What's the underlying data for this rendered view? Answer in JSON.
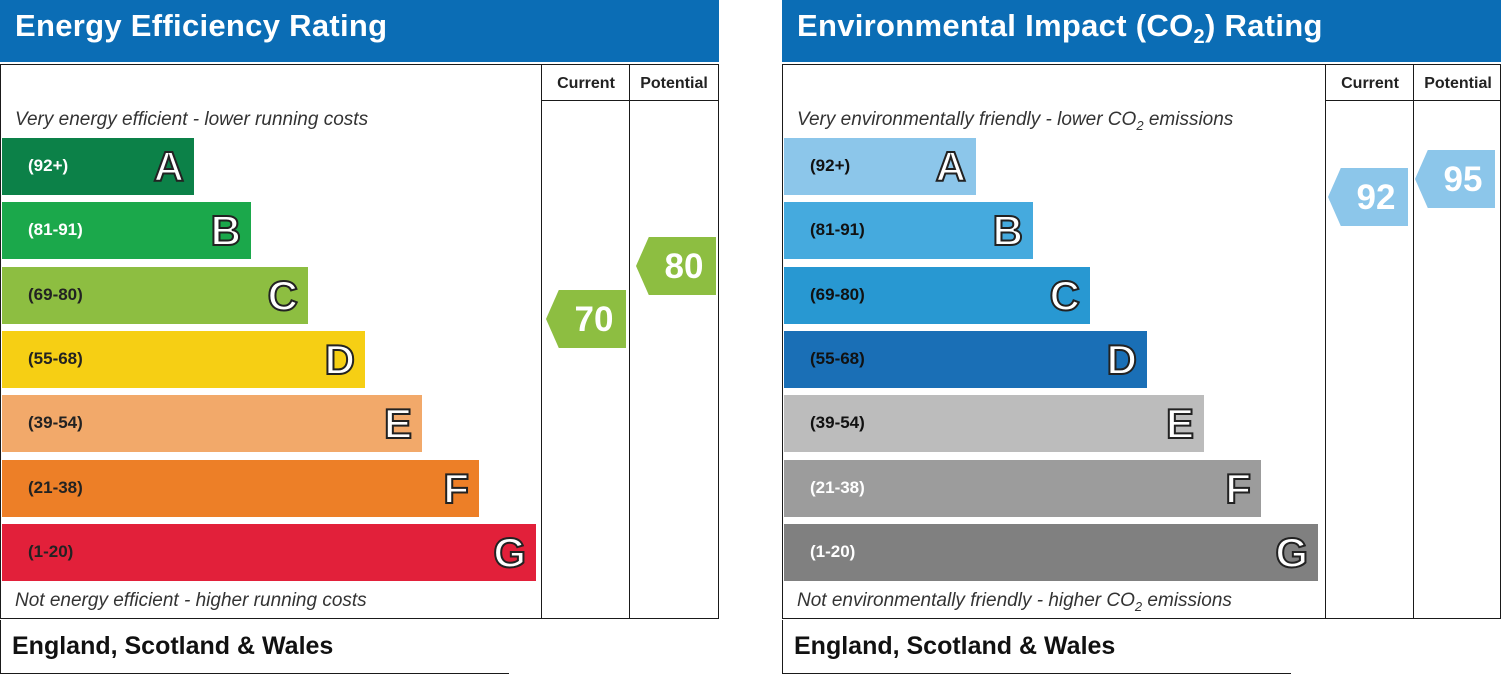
{
  "chart_data": [
    {
      "type": "bar",
      "title": "Energy Efficiency Rating",
      "columns": [
        "Current",
        "Potential"
      ],
      "top_caption": "Very energy efficient - lower running costs",
      "bottom_caption": "Not energy efficient - higher running costs",
      "footer": "England, Scotland & Wales",
      "bands": [
        {
          "letter": "A",
          "range": "(92+)",
          "color": "#0c8148",
          "text_color": "#ffffff",
          "min": 92,
          "max": 100
        },
        {
          "letter": "B",
          "range": "(81-91)",
          "color": "#1ba84b",
          "text_color": "#ffffff",
          "min": 81,
          "max": 91
        },
        {
          "letter": "C",
          "range": "(69-80)",
          "color": "#8dbe41",
          "text_color": "#222222",
          "min": 69,
          "max": 80
        },
        {
          "letter": "D",
          "range": "(55-68)",
          "color": "#f6cf14",
          "text_color": "#222222",
          "min": 55,
          "max": 68
        },
        {
          "letter": "E",
          "range": "(39-54)",
          "color": "#f2a96a",
          "text_color": "#222222",
          "min": 39,
          "max": 54
        },
        {
          "letter": "F",
          "range": "(21-38)",
          "color": "#ed7f27",
          "text_color": "#222222",
          "min": 21,
          "max": 38
        },
        {
          "letter": "G",
          "range": "(1-20)",
          "color": "#e2203a",
          "text_color": "#222222",
          "min": 1,
          "max": 20
        }
      ],
      "current": {
        "value": "70",
        "color": "#8dbe41"
      },
      "potential": {
        "value": "80",
        "color": "#8dbe41"
      }
    },
    {
      "type": "bar",
      "title_pre": "Environmental Impact (CO",
      "title_sub": "2",
      "title_post": ") Rating",
      "columns": [
        "Current",
        "Potential"
      ],
      "top_caption_pre": "Very environmentally friendly - lower CO",
      "top_caption_sub": "2",
      "top_caption_post": " emissions",
      "bottom_caption_pre": "Not environmentally friendly - higher CO",
      "bottom_caption_sub": "2",
      "bottom_caption_post": " emissions",
      "footer": "England, Scotland & Wales",
      "bands": [
        {
          "letter": "A",
          "range": "(92+)",
          "color": "#8cc6ea",
          "text_color": "#111111",
          "min": 92,
          "max": 100
        },
        {
          "letter": "B",
          "range": "(81-91)",
          "color": "#45aade",
          "text_color": "#111111",
          "min": 81,
          "max": 91
        },
        {
          "letter": "C",
          "range": "(69-80)",
          "color": "#2898d2",
          "text_color": "#111111",
          "min": 69,
          "max": 80
        },
        {
          "letter": "D",
          "range": "(55-68)",
          "color": "#1a6fb6",
          "text_color": "#111111",
          "min": 55,
          "max": 68
        },
        {
          "letter": "E",
          "range": "(39-54)",
          "color": "#bcbcbc",
          "text_color": "#111111",
          "min": 39,
          "max": 54
        },
        {
          "letter": "F",
          "range": "(21-38)",
          "color": "#9c9c9c",
          "text_color": "#ffffff",
          "min": 21,
          "max": 38
        },
        {
          "letter": "G",
          "range": "(1-20)",
          "color": "#808080",
          "text_color": "#ffffff",
          "min": 1,
          "max": 20
        }
      ],
      "current": {
        "value": "92",
        "color": "#8cc6ea"
      },
      "potential": {
        "value": "95",
        "color": "#8cc6ea"
      }
    }
  ]
}
